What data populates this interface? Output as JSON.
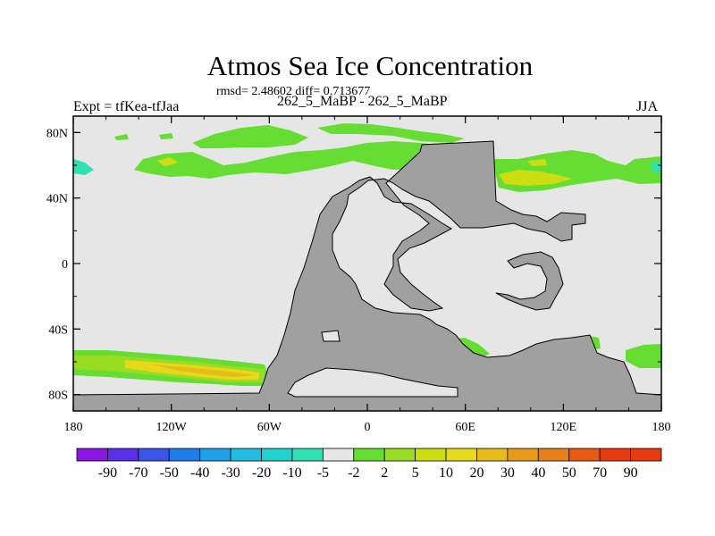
{
  "title": "Atmos Sea Ice Concentration",
  "stats": "rmsd= 2.48602 diff= 0.713677",
  "left_label": "Expt = tfKea-tfJaa",
  "center_label": "262_5_MaBP - 262_5_MaBP",
  "right_label": "JJA",
  "x_ticks": [
    "180",
    "120W",
    "60W",
    "0",
    "60E",
    "120E",
    "180"
  ],
  "y_ticks": [
    "80N",
    "40N",
    "0",
    "40S",
    "80S"
  ],
  "colorbar": {
    "labels": [
      "-90",
      "-70",
      "-50",
      "-40",
      "-30",
      "-20",
      "-10",
      "-5",
      "-2",
      "2",
      "5",
      "10",
      "20",
      "30",
      "40",
      "50",
      "70",
      "90"
    ],
    "colors": [
      "#8a16e0",
      "#5a2fe6",
      "#3a55e8",
      "#1f7de8",
      "#1fa0e8",
      "#22bde0",
      "#22d0d0",
      "#30e0b0",
      "#e6e6e6",
      "#66dd33",
      "#99dd22",
      "#ccdd11",
      "#e6d81a",
      "#e6bb1a",
      "#e69a1a",
      "#e6801a",
      "#e65a14",
      "#e63a10"
    ]
  },
  "colors": {
    "land": "#a0a0a0",
    "background": "#e6e6e6"
  }
}
